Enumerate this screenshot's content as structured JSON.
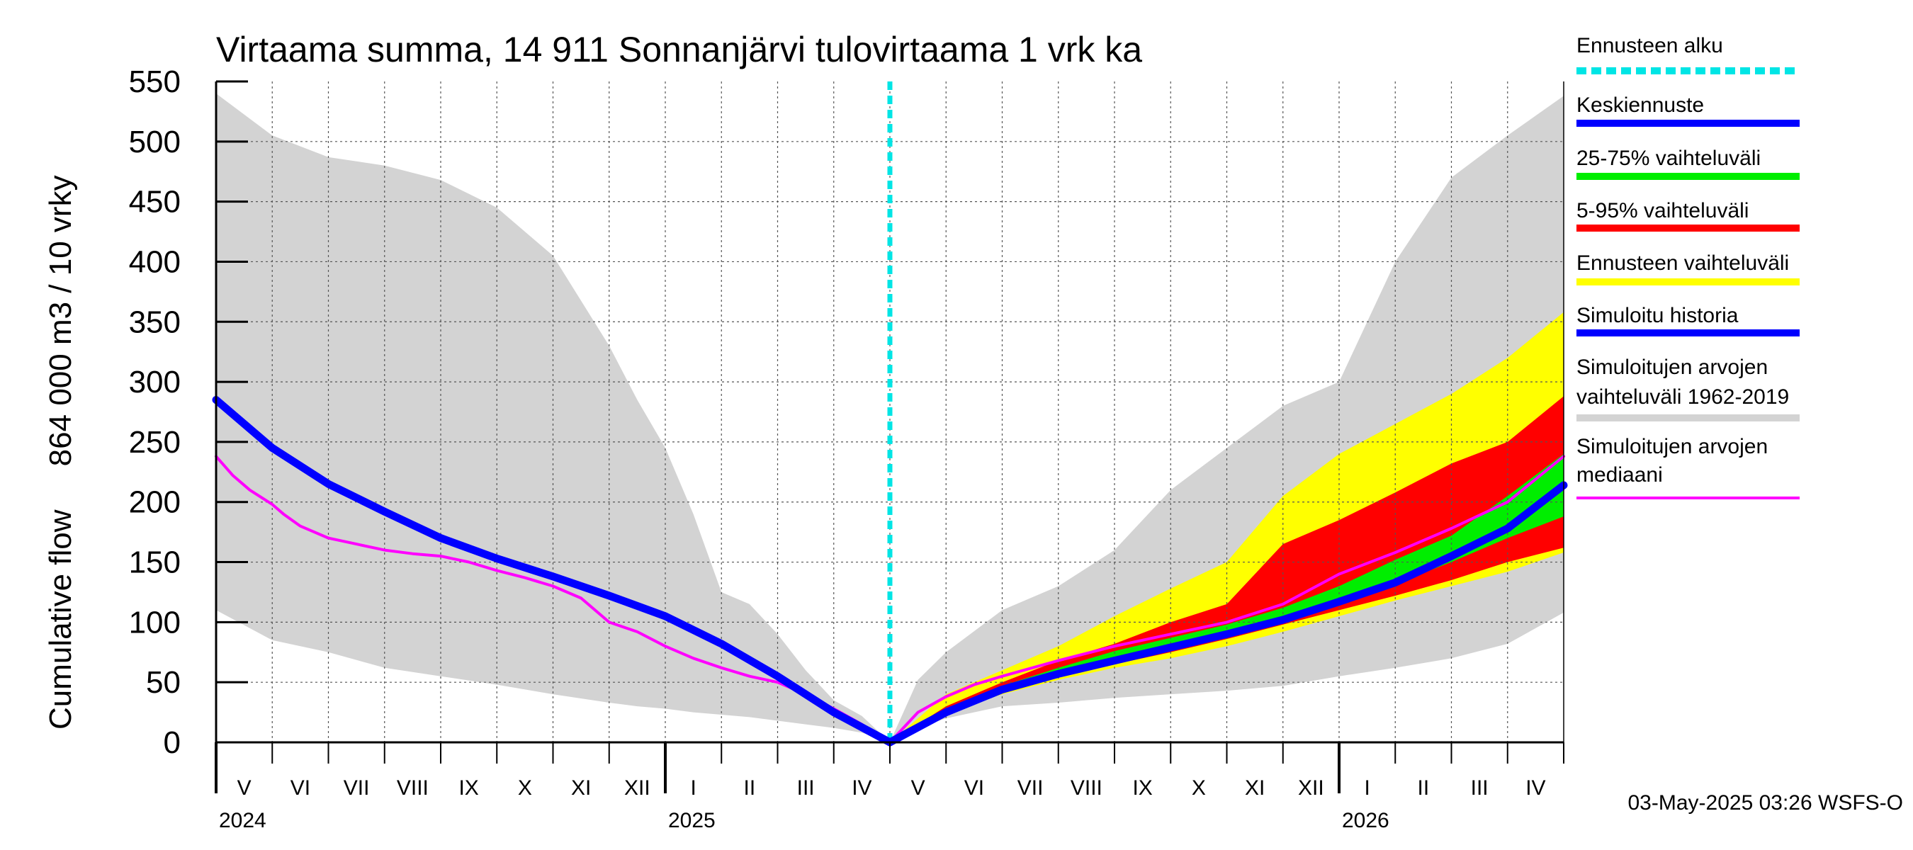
{
  "chart_data": {
    "type": "area",
    "title": "Virtaama summa, 14 911 Sonnanjärvi tulovirtaama 1 vrk ka",
    "ylabel": "Cumulative flow     864 000 m3 / 10 vrky",
    "ylim": [
      0,
      550
    ],
    "yticks": [
      "0",
      "50",
      "100",
      "150",
      "200",
      "250",
      "300",
      "350",
      "400",
      "450",
      "500",
      "550"
    ],
    "grid": true,
    "x_range": [
      0,
      24
    ],
    "month_labels": [
      "V",
      "VI",
      "VII",
      "VIII",
      "IX",
      "X",
      "XI",
      "XII",
      "I",
      "II",
      "III",
      "IV",
      "V",
      "VI",
      "VII",
      "VIII",
      "IX",
      "X",
      "XI",
      "XII",
      "I",
      "II",
      "III",
      "IV"
    ],
    "year_labels": [
      {
        "label": "2024",
        "x": 0
      },
      {
        "label": "2025",
        "x": 8
      },
      {
        "label": "2026",
        "x": 20
      }
    ],
    "forecast_start_x": 12,
    "footer": "03-May-2025 03:26 WSFS-O",
    "series": [
      {
        "name": "Simuloitujen arvojen vaihteluväli 1962-2019",
        "color": "#d3d3d3",
        "kind": "band",
        "x": [
          0,
          1,
          2,
          3,
          4,
          5,
          6,
          7,
          7.5,
          8,
          8.5,
          9,
          9.5,
          10,
          10.5,
          11,
          11.5,
          12,
          12.5,
          13,
          14,
          15,
          16,
          17,
          18,
          19,
          20,
          21,
          22,
          23,
          24
        ],
        "upper": [
          540,
          505,
          487,
          480,
          468,
          445,
          405,
          330,
          285,
          245,
          190,
          125,
          115,
          90,
          60,
          35,
          22,
          0,
          52,
          75,
          110,
          130,
          160,
          210,
          245,
          280,
          300,
          400,
          470,
          505,
          538
        ],
        "lower": [
          110,
          85,
          75,
          62,
          55,
          48,
          40,
          33,
          30,
          28,
          25,
          23,
          21,
          18,
          15,
          12,
          8,
          0,
          12,
          20,
          30,
          33,
          37,
          40,
          43,
          47,
          55,
          62,
          70,
          82,
          108
        ]
      },
      {
        "name": "Ennusteen vaihteluväli",
        "color": "#ffff00",
        "kind": "band",
        "x": [
          12,
          13,
          14,
          15,
          16,
          17,
          18,
          19,
          20,
          21,
          22,
          23,
          24
        ],
        "upper": [
          0,
          40,
          60,
          80,
          105,
          128,
          150,
          205,
          240,
          265,
          290,
          320,
          358
        ],
        "lower": [
          0,
          25,
          40,
          52,
          62,
          70,
          80,
          92,
          105,
          118,
          130,
          142,
          158
        ]
      },
      {
        "name": "5-95% vaihteluväli",
        "color": "#ff0000",
        "kind": "band",
        "x": [
          12,
          13,
          14,
          15,
          16,
          17,
          18,
          19,
          20,
          21,
          22,
          23,
          24
        ],
        "upper": [
          0,
          30,
          50,
          68,
          82,
          100,
          115,
          165,
          185,
          208,
          232,
          250,
          288
        ],
        "lower": [
          0,
          26,
          42,
          54,
          65,
          75,
          86,
          98,
          110,
          122,
          135,
          150,
          162
        ]
      },
      {
        "name": "25-75% vaihteluväli",
        "color": "#00ee00",
        "kind": "band",
        "x": [
          12,
          13,
          14,
          15,
          16,
          17,
          18,
          19,
          20,
          21,
          22,
          23,
          24
        ],
        "upper": [
          0,
          28,
          47,
          62,
          76,
          87,
          98,
          112,
          130,
          152,
          172,
          205,
          240
        ],
        "lower": [
          0,
          27,
          45,
          58,
          70,
          80,
          92,
          104,
          118,
          132,
          150,
          170,
          188
        ]
      },
      {
        "name": "Simuloitujen arvojen mediaani",
        "color": "#ff00ff",
        "kind": "line",
        "x": [
          0,
          0.3,
          0.6,
          1,
          1.2,
          1.5,
          2,
          2.5,
          3,
          3.5,
          4,
          4.5,
          5,
          5.5,
          6,
          6.5,
          7,
          7.5,
          8,
          8.5,
          9,
          9.5,
          10,
          10.5,
          11,
          11.5,
          12,
          12.5,
          13,
          13.5,
          14,
          15,
          16,
          17,
          18,
          19,
          20,
          21,
          22,
          23,
          24
        ],
        "y": [
          238,
          222,
          210,
          198,
          190,
          180,
          170,
          165,
          160,
          157,
          155,
          150,
          143,
          137,
          130,
          120,
          100,
          92,
          80,
          70,
          62,
          55,
          50,
          40,
          28,
          15,
          0,
          25,
          38,
          48,
          55,
          68,
          80,
          90,
          100,
          115,
          140,
          158,
          178,
          200,
          238
        ]
      },
      {
        "name": "Keskiennuste",
        "color": "#0000ff",
        "kind": "line",
        "x": [
          12,
          13,
          14,
          15,
          16,
          17,
          18,
          19,
          20,
          21,
          22,
          23,
          24
        ],
        "y": [
          0,
          25,
          44,
          57,
          68,
          79,
          90,
          102,
          117,
          133,
          155,
          178,
          214
        ]
      },
      {
        "name": "Simuloitu historia",
        "color": "#0000ff",
        "kind": "line",
        "x": [
          0,
          1,
          2,
          3,
          4,
          5,
          6,
          7,
          8,
          9,
          10,
          11,
          12
        ],
        "y": [
          285,
          245,
          215,
          192,
          170,
          153,
          138,
          122,
          105,
          82,
          55,
          25,
          0
        ]
      }
    ],
    "legend": [
      {
        "label": "Ennusteen alku",
        "color": "#00e5e5",
        "style": "dashed"
      },
      {
        "label": "Keskiennuste",
        "color": "#0000ff",
        "style": "solid"
      },
      {
        "label": "25-75% vaihteluväli",
        "color": "#00ee00",
        "style": "solid"
      },
      {
        "label": "5-95% vaihteluväli",
        "color": "#ff0000",
        "style": "solid"
      },
      {
        "label": "Ennusteen vaihteluväli",
        "color": "#ffff00",
        "style": "solid"
      },
      {
        "label": "Simuloitu historia",
        "color": "#0000ff",
        "style": "solid"
      },
      {
        "label": "Simuloitujen arvojen vaihteluväli 1962-2019",
        "color": "#d3d3d3",
        "style": "solid"
      },
      {
        "label": "Simuloitujen arvojen mediaani",
        "color": "#ff00ff",
        "style": "thin"
      }
    ]
  }
}
